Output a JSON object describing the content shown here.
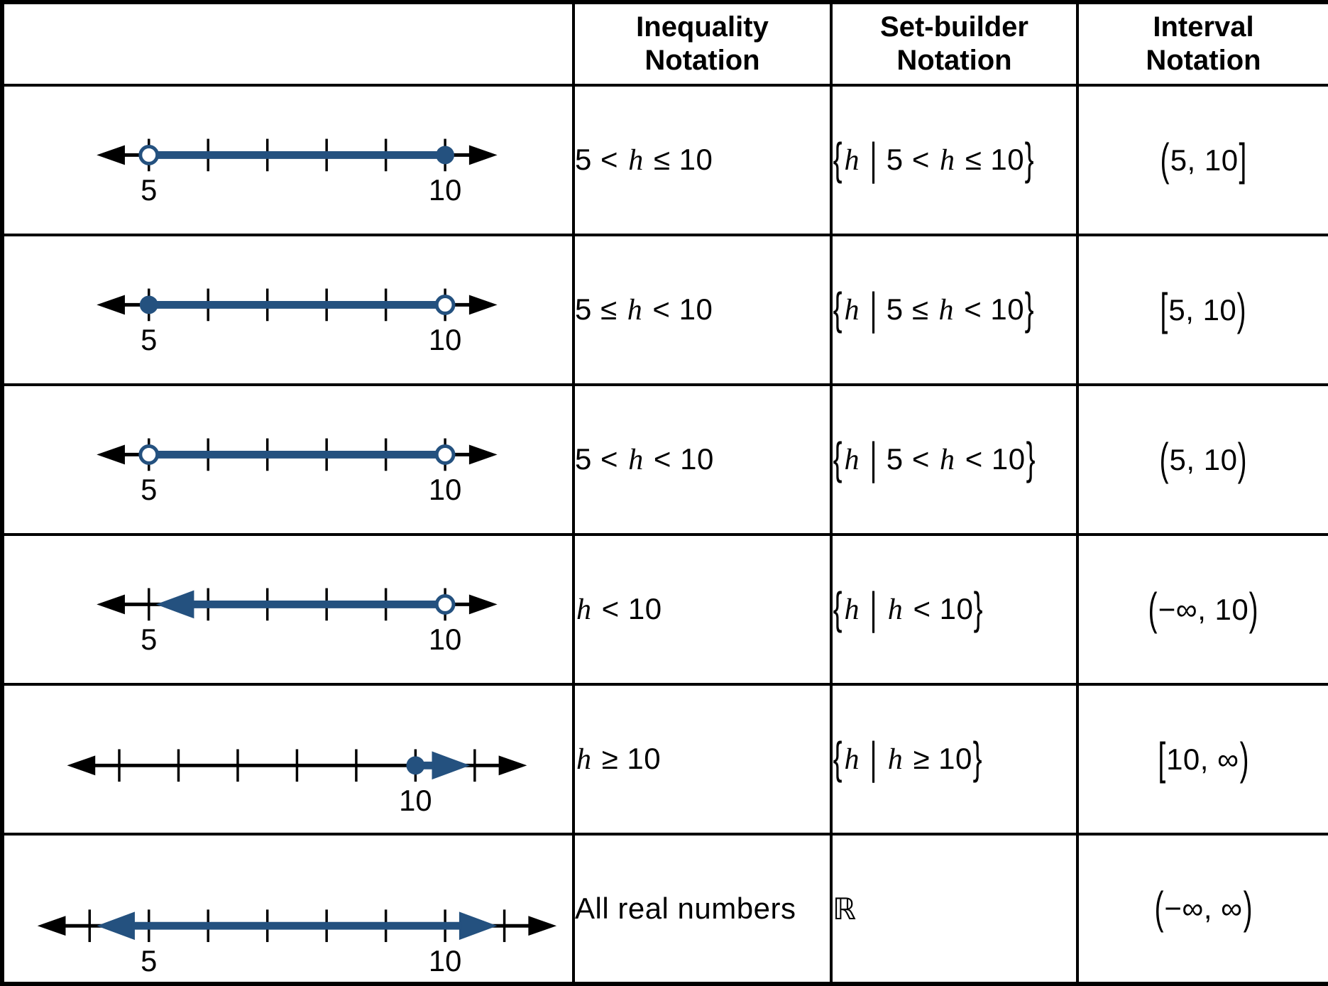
{
  "colors": {
    "shade_blue": "#24517F",
    "ink": "#000000",
    "background": "#FFFFFF"
  },
  "table": {
    "headers": [
      "",
      "Inequality Notation",
      "Set-builder Notation",
      "Interval Notation"
    ],
    "rows": [
      {
        "inequality": "5 < h ≤ 10",
        "set_builder": "{h | 5 < h ≤ 10}",
        "interval": "(5, 10]",
        "numberline": {
          "tick_start": 5,
          "tick_end": 10,
          "tick_labels": [
            5,
            10
          ],
          "shade_from": 5,
          "shade_to": 10,
          "left_end": "open",
          "right_end": "closed"
        }
      },
      {
        "inequality": "5 ≤ h < 10",
        "set_builder": "{h | 5 ≤ h < 10}",
        "interval": "[5, 10)",
        "numberline": {
          "tick_start": 5,
          "tick_end": 10,
          "tick_labels": [
            5,
            10
          ],
          "shade_from": 5,
          "shade_to": 10,
          "left_end": "closed",
          "right_end": "open"
        }
      },
      {
        "inequality": "5 < h < 10",
        "set_builder": "{h | 5 < h < 10}",
        "interval": "(5, 10)",
        "numberline": {
          "tick_start": 5,
          "tick_end": 10,
          "tick_labels": [
            5,
            10
          ],
          "shade_from": 5,
          "shade_to": 10,
          "left_end": "open",
          "right_end": "open"
        }
      },
      {
        "inequality": "h < 10",
        "set_builder": "{h | h < 10}",
        "interval": "(−∞, 10)",
        "numberline": {
          "tick_start": 5,
          "tick_end": 10,
          "tick_labels": [
            5,
            10
          ],
          "shade_from": 5.12,
          "shade_to": 10,
          "left_end": "arrow",
          "right_end": "open"
        }
      },
      {
        "inequality": "h ≥ 10",
        "set_builder": "{h | h ≥ 10}",
        "interval": "[10, ∞)",
        "numberline": {
          "tick_start": 5,
          "tick_end": 11,
          "tick_labels": [
            10
          ],
          "shade_from": 10,
          "shade_to": 10.92,
          "left_end": "closed",
          "right_end": "arrow"
        }
      },
      {
        "inequality": "All real numbers",
        "set_builder": "ℝ",
        "interval": "(−∞, ∞)",
        "numberline": {
          "tick_start": 4,
          "tick_end": 11,
          "tick_labels": [
            5,
            10
          ],
          "shade_from": 4.12,
          "shade_to": 10.88,
          "left_end": "arrow",
          "right_end": "arrow"
        }
      }
    ]
  }
}
